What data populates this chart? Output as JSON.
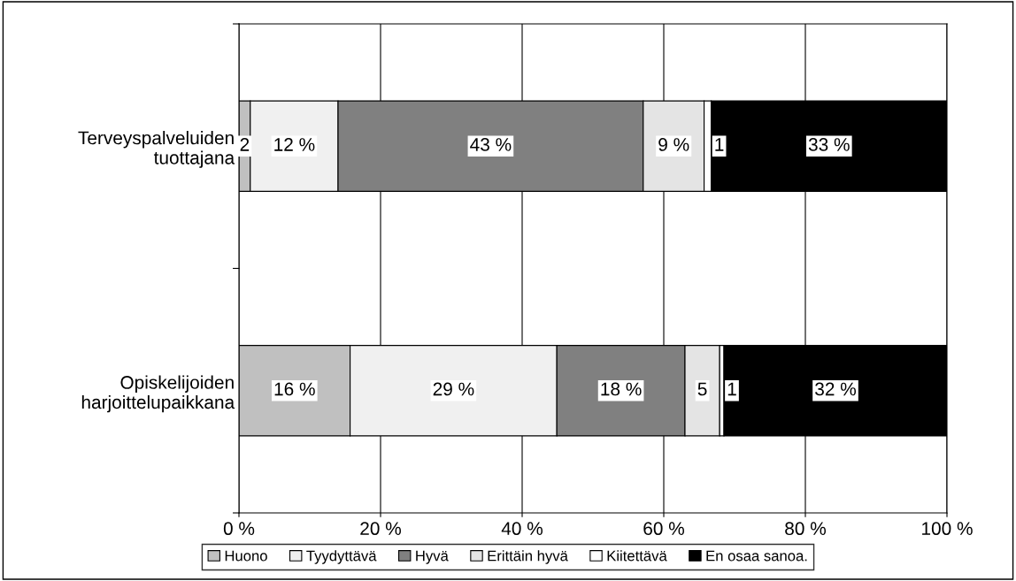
{
  "chart_data": {
    "type": "bar",
    "orientation": "horizontal",
    "stacked": true,
    "categories": [
      "Terveyspalveluiden\ntuottajana",
      "Opiskelijoiden\nharjoittelupaikkana"
    ],
    "series": [
      {
        "name": "Huono",
        "color": "#c0c0c0",
        "values": [
          1.6,
          15.7
        ],
        "value_labels": [
          "2",
          "16 %"
        ]
      },
      {
        "name": "Tyydyttävä",
        "color": "#f0f0f0",
        "values": [
          12.4,
          29.2
        ],
        "value_labels": [
          "12 %",
          "29 %"
        ]
      },
      {
        "name": "Hyvä",
        "color": "#808080",
        "values": [
          43.1,
          18.1
        ],
        "value_labels": [
          "43 %",
          "18 %"
        ]
      },
      {
        "name": "Erittäin hyvä",
        "color": "#e4e4e4",
        "values": [
          8.6,
          4.9
        ],
        "value_labels": [
          "9 %",
          "5"
        ]
      },
      {
        "name": "Kiitettävä",
        "color": "#ffffff",
        "values": [
          1.0,
          0.6
        ],
        "value_labels": [
          "1",
          "1"
        ]
      },
      {
        "name": "En osaa sanoa.",
        "color": "#000000",
        "values": [
          33.3,
          31.5
        ],
        "value_labels": [
          "33 %",
          "32 %"
        ]
      }
    ],
    "xlim": [
      0,
      100
    ],
    "xticks": [
      {
        "value": 0,
        "label": "0 %"
      },
      {
        "value": 20,
        "label": "20 %"
      },
      {
        "value": 40,
        "label": "40 %"
      },
      {
        "value": 60,
        "label": "60 %"
      },
      {
        "value": 80,
        "label": "80 %"
      },
      {
        "value": 100,
        "label": "100 %"
      }
    ],
    "grid": "x",
    "legend": "bottom"
  }
}
